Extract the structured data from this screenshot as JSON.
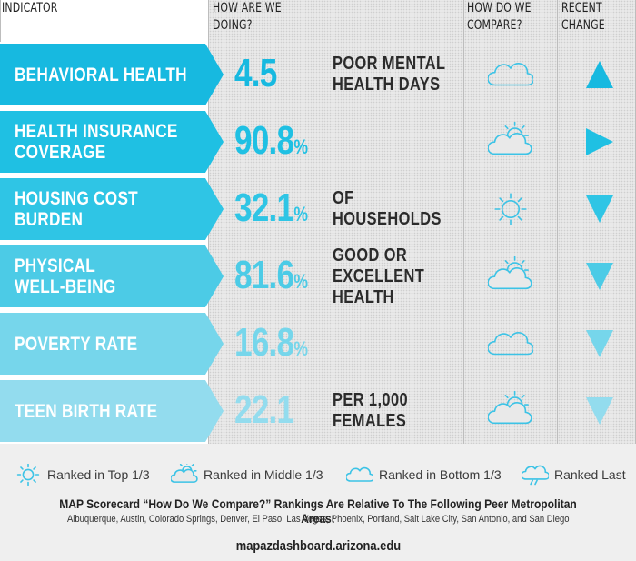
{
  "headers": {
    "indicator": "INDICATOR",
    "doing": "HOW ARE WE\nDOING?",
    "compare": "HOW DO WE\nCOMPARE?",
    "change": "RECENT\nCHANGE"
  },
  "rows": [
    {
      "label": "BEHAVIORAL HEALTH",
      "value": "4.5",
      "suffix": "",
      "unit": "POOR MENTAL\nHEALTH DAYS",
      "compare_icon": "cloudy-icon",
      "trend": "up"
    },
    {
      "label": "HEALTH INSURANCE\nCOVERAGE",
      "value": "90.8",
      "suffix": "%",
      "unit": "",
      "compare_icon": "partly-cloudy-icon",
      "trend": "right"
    },
    {
      "label": "HOUSING COST\nBURDEN",
      "value": "32.1",
      "suffix": "%",
      "unit": "OF\nHOUSEHOLDS",
      "compare_icon": "sun-icon",
      "trend": "down"
    },
    {
      "label": "PHYSICAL\nWELL-BEING",
      "value": "81.6",
      "suffix": "%",
      "unit": "GOOD OR\nEXCELLENT\nHEALTH",
      "compare_icon": "partly-cloudy-icon",
      "trend": "down"
    },
    {
      "label": "POVERTY RATE",
      "value": "16.8",
      "suffix": "%",
      "unit": "",
      "compare_icon": "cloudy-icon",
      "trend": "down"
    },
    {
      "label": "TEEN BIRTH RATE",
      "value": "22.1",
      "suffix": "",
      "unit": "PER 1,000\nFEMALES",
      "compare_icon": "partly-cloudy-icon",
      "trend": "down"
    }
  ],
  "row_colors": [
    "#17b9e0",
    "#1fc0e3",
    "#2fc5e5",
    "#4ccbe6",
    "#76d6eb",
    "#93dcee"
  ],
  "legend": [
    {
      "icon": "sun-icon",
      "label": "Ranked in Top 1/3"
    },
    {
      "icon": "partly-cloudy-icon",
      "label": "Ranked in Middle 1/3"
    },
    {
      "icon": "cloudy-icon",
      "label": "Ranked in Bottom 1/3"
    },
    {
      "icon": "rain-cloud-icon",
      "label": "Ranked Last"
    }
  ],
  "footnote_title": "MAP Scorecard “How Do We Compare?” Rankings Are Relative To The Following Peer Metropolitan Areas:",
  "footnote_list": "Albuquerque, Austin, Colorado Springs, Denver, El Paso, Las Vegas, Phoenix, Portland, Salt Lake City, San Antonio, and San Diego",
  "url": "mapazdashboard.arizona.edu"
}
